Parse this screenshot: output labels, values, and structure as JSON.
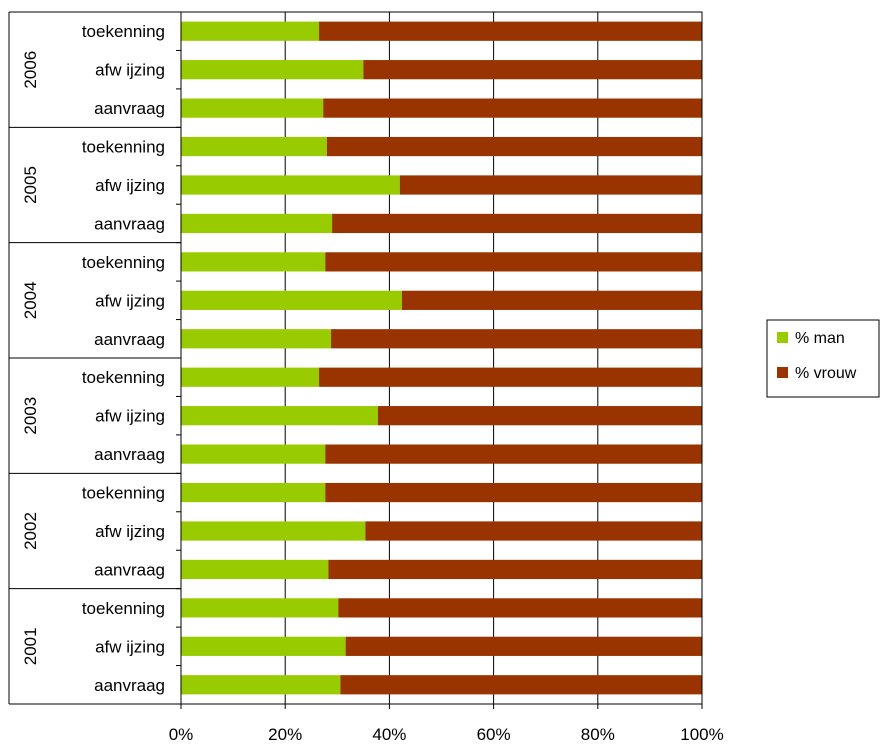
{
  "chart_data": {
    "type": "bar",
    "orientation": "horizontal",
    "stacked": "percent",
    "groups": [
      {
        "label": "2006",
        "categories": [
          "toekenning",
          "afw ijzing",
          "aanvraag"
        ],
        "man": [
          26.5,
          35.0,
          27.3
        ]
      },
      {
        "label": "2005",
        "categories": [
          "toekenning",
          "afw ijzing",
          "aanvraag"
        ],
        "man": [
          28.0,
          42.0,
          29.0
        ]
      },
      {
        "label": "2004",
        "categories": [
          "toekenning",
          "afw ijzing",
          "aanvraag"
        ],
        "man": [
          27.7,
          42.4,
          28.8
        ]
      },
      {
        "label": "2003",
        "categories": [
          "toekenning",
          "afw ijzing",
          "aanvraag"
        ],
        "man": [
          26.5,
          37.8,
          27.7
        ]
      },
      {
        "label": "2002",
        "categories": [
          "toekenning",
          "afw ijzing",
          "aanvraag"
        ],
        "man": [
          27.7,
          35.4,
          28.3
        ]
      },
      {
        "label": "2001",
        "categories": [
          "toekenning",
          "afw ijzing",
          "aanvraag"
        ],
        "man": [
          30.2,
          31.6,
          30.6
        ]
      }
    ],
    "series": [
      {
        "name": "% man",
        "key": "man",
        "color": "#99cc00"
      },
      {
        "name": "% vrouw",
        "key": "vrouw",
        "color": "#993300"
      }
    ],
    "xaxis": {
      "min": 0,
      "max": 100,
      "ticks": [
        "0%",
        "20%",
        "40%",
        "60%",
        "80%",
        "100%"
      ]
    },
    "grid": true,
    "legend_position": "right"
  }
}
